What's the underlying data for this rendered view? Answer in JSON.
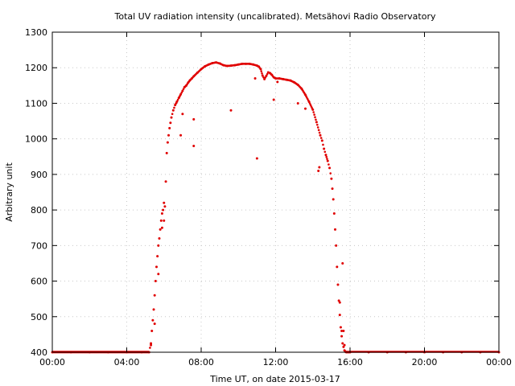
{
  "chart_data": {
    "type": "scatter",
    "title": "Total UV radiation intensity (uncalibrated). Metsähovi Radio Observatory",
    "xlabel": "Time UT, on date 2015-03-17",
    "ylabel": "Arbitrary unit",
    "xlim": [
      0,
      24
    ],
    "ylim": [
      400,
      1300
    ],
    "x_ticks": [
      0,
      4,
      8,
      12,
      16,
      20,
      24
    ],
    "x_tick_labels": [
      "00:00",
      "04:00",
      "08:00",
      "12:00",
      "16:00",
      "20:00",
      "00:00"
    ],
    "y_ticks": [
      400,
      500,
      600,
      700,
      800,
      900,
      1000,
      1100,
      1200,
      1300
    ],
    "y_tick_labels": [
      "400",
      "500",
      "600",
      "700",
      "800",
      "900",
      "1000",
      "1100",
      "1200",
      "1300"
    ],
    "grid": true,
    "series": [
      {
        "color": "#e00000",
        "x": [
          0.0,
          1.0,
          2.0,
          3.0,
          4.0,
          4.8,
          5.2,
          5.3,
          5.35,
          5.4,
          5.45,
          5.5,
          5.55,
          5.6,
          5.65,
          5.7,
          5.75,
          5.8,
          5.85,
          5.9,
          5.95,
          6.0,
          6.05,
          6.1,
          6.15,
          6.2,
          6.25,
          6.3,
          6.35,
          6.4,
          6.5,
          6.6,
          6.7,
          6.8,
          6.9,
          7.0,
          7.1,
          7.2,
          7.3,
          7.4,
          7.5,
          7.6,
          7.8,
          8.0,
          8.2,
          8.4,
          8.6,
          8.8,
          9.0,
          9.2,
          9.4,
          9.6,
          9.8,
          10.0,
          10.2,
          10.4,
          10.6,
          10.8,
          11.0,
          11.1,
          11.2,
          11.3,
          11.4,
          11.5,
          11.6,
          11.7,
          11.8,
          11.9,
          12.0,
          12.2,
          12.4,
          12.6,
          12.8,
          13.0,
          13.2,
          13.4,
          13.6,
          13.8,
          14.0,
          14.2,
          14.4,
          14.5,
          14.6,
          14.7,
          14.8,
          14.9,
          15.0,
          15.05,
          15.1,
          15.15,
          15.2,
          15.25,
          15.3,
          15.35,
          15.4,
          15.45,
          15.5,
          15.55,
          15.6,
          15.65,
          15.7,
          15.8,
          15.9,
          16.0,
          17.0,
          18.0,
          19.0,
          20.0,
          21.0,
          22.0,
          23.0,
          24.0,
          5.3,
          5.5,
          5.7,
          5.9,
          6.0,
          6.9,
          7.0,
          7.6,
          7.6,
          9.6,
          10.9,
          11.0,
          11.9,
          12.1,
          13.2,
          13.6,
          14.3,
          14.35,
          15.45,
          15.55,
          15.65,
          15.7,
          15.6
        ],
        "y": [
          400,
          400,
          400,
          400,
          400,
          400,
          400,
          425,
          460,
          490,
          520,
          560,
          600,
          640,
          670,
          700,
          720,
          745,
          770,
          790,
          800,
          770,
          810,
          880,
          960,
          990,
          1010,
          1030,
          1045,
          1060,
          1080,
          1095,
          1105,
          1115,
          1125,
          1135,
          1145,
          1150,
          1158,
          1165,
          1170,
          1176,
          1186,
          1196,
          1204,
          1209,
          1213,
          1215,
          1212,
          1207,
          1205,
          1206,
          1207,
          1209,
          1211,
          1211,
          1211,
          1209,
          1206,
          1203,
          1196,
          1178,
          1168,
          1177,
          1187,
          1185,
          1180,
          1173,
          1170,
          1170,
          1168,
          1166,
          1164,
          1159,
          1152,
          1141,
          1124,
          1104,
          1082,
          1047,
          1010,
          995,
          972,
          955,
          938,
          918,
          888,
          860,
          830,
          790,
          745,
          700,
          640,
          590,
          545,
          505,
          470,
          445,
          425,
          415,
          405,
          400,
          400,
          400,
          400,
          400,
          400,
          400,
          400,
          400,
          400,
          400,
          420,
          480,
          620,
          750,
          820,
          1010,
          1070,
          980,
          1055,
          1080,
          1170,
          945,
          1110,
          1160,
          1100,
          1085,
          910,
          920,
          540,
          460,
          460,
          420,
          650
        ]
      }
    ]
  }
}
